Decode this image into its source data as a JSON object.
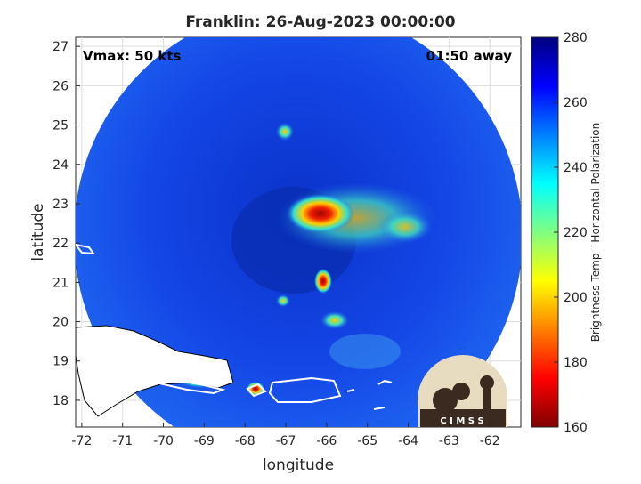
{
  "chart_data": {
    "type": "image",
    "title": "Franklin: 26-Aug-2023 00:00:00",
    "annotations": [
      "Vmax: 50 kts",
      "01:50 away"
    ],
    "xlabel": "longitude",
    "ylabel": "latitude",
    "xlim": [
      -72.15,
      -61.24
    ],
    "xticks": [
      -72,
      -71,
      -70,
      -69,
      -68,
      -67,
      -66,
      -65,
      -64,
      -63,
      -62
    ],
    "ylim": [
      17.32,
      27.23
    ],
    "yticks": [
      18,
      19,
      20,
      21,
      22,
      23,
      24,
      25,
      26,
      27
    ],
    "grid": true,
    "colorbar": {
      "label": "Brightness Temp - Horizontal Polarization",
      "lim": [
        160,
        280
      ],
      "ticks": [
        160,
        180,
        200,
        220,
        240,
        260,
        280
      ]
    },
    "logo": "C I M S S"
  }
}
